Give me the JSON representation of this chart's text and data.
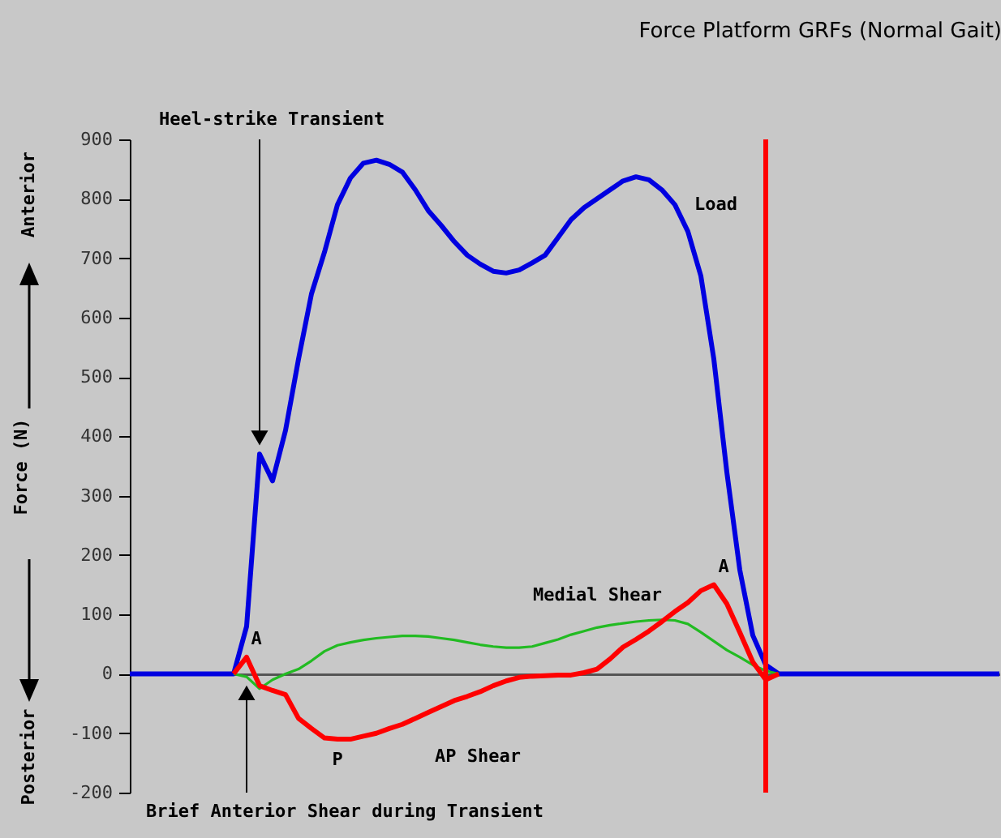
{
  "chart_data": {
    "type": "line",
    "title": "Force Platform GRFs (Normal Gait)",
    "ylabel": "Force (N)",
    "categories": [
      null,
      null,
      null,
      null,
      null,
      null,
      null,
      null,
      null,
      null,
      null,
      null,
      null,
      null,
      null,
      null,
      null,
      null,
      null,
      null,
      null,
      null,
      null,
      null,
      null,
      null,
      null,
      null,
      null,
      null,
      null,
      null,
      null,
      null,
      null,
      null,
      null,
      null,
      null,
      null,
      null,
      null,
      null,
      null,
      null,
      null,
      null,
      null,
      null,
      null,
      null,
      null,
      null,
      null,
      null,
      null,
      null,
      null,
      null,
      null,
      null,
      null,
      null,
      null,
      null,
      null,
      null,
      null
    ],
    "series": [
      {
        "name": "Load",
        "color": "#0000e0",
        "values": [
          0,
          0,
          0,
          0,
          0,
          0,
          0,
          0,
          0,
          80,
          370,
          325,
          410,
          530,
          640,
          710,
          790,
          835,
          860,
          865,
          858,
          845,
          815,
          780,
          755,
          728,
          705,
          690,
          678,
          675,
          680,
          692,
          705,
          735,
          765,
          785,
          800,
          815,
          830,
          837,
          832,
          815,
          790,
          745,
          670,
          530,
          340,
          175,
          65,
          15,
          0,
          0,
          0,
          0,
          0,
          0,
          0,
          0,
          0,
          0,
          0,
          0,
          0,
          0,
          0,
          0,
          0,
          0
        ]
      },
      {
        "name": "Medial Shear",
        "color": "#22bb22",
        "values": [
          null,
          null,
          null,
          null,
          null,
          null,
          null,
          null,
          0,
          -5,
          -25,
          -10,
          0,
          8,
          22,
          38,
          48,
          53,
          57,
          60,
          62,
          64,
          64,
          63,
          60,
          57,
          53,
          49,
          46,
          44,
          44,
          46,
          52,
          58,
          66,
          72,
          78,
          82,
          85,
          88,
          90,
          91,
          90,
          84,
          70,
          55,
          40,
          28,
          15,
          5,
          0,
          null,
          null,
          null,
          null,
          null,
          null,
          null,
          null,
          null,
          null,
          null,
          null,
          null,
          null,
          null,
          null,
          null
        ]
      },
      {
        "name": "AP Shear",
        "color": "#ff0000",
        "values": [
          null,
          null,
          null,
          null,
          null,
          null,
          null,
          null,
          0,
          28,
          -20,
          -28,
          -35,
          -75,
          -92,
          -108,
          -110,
          -110,
          -105,
          -100,
          -92,
          -85,
          -75,
          -65,
          -55,
          -45,
          -38,
          -30,
          -20,
          -12,
          -6,
          -4,
          -3,
          -2,
          -2,
          2,
          8,
          25,
          45,
          58,
          72,
          88,
          105,
          120,
          140,
          150,
          118,
          70,
          20,
          -10,
          0,
          null,
          null,
          null,
          null,
          null,
          null,
          null,
          null,
          null,
          null,
          null,
          null,
          null,
          null,
          null,
          null,
          null
        ]
      }
    ],
    "ylim": [
      -200,
      900
    ],
    "yticks": [
      -200,
      -100,
      0,
      100,
      200,
      300,
      400,
      500,
      600,
      700,
      800,
      900
    ],
    "tick_labels": "y",
    "grid": false,
    "marker": "none",
    "line_style": "solid",
    "ref_lines": [
      {
        "axis": "x",
        "color": "#ff0000"
      }
    ],
    "annotations": [
      "Heel-strike Transient",
      "Brief Anterior Shear during Transient",
      {
        "text": "A",
        "y": 28
      },
      {
        "text": "P",
        "y": -110
      },
      {
        "text": "A",
        "y": 150
      },
      "Anterior",
      "Posterior"
    ]
  }
}
